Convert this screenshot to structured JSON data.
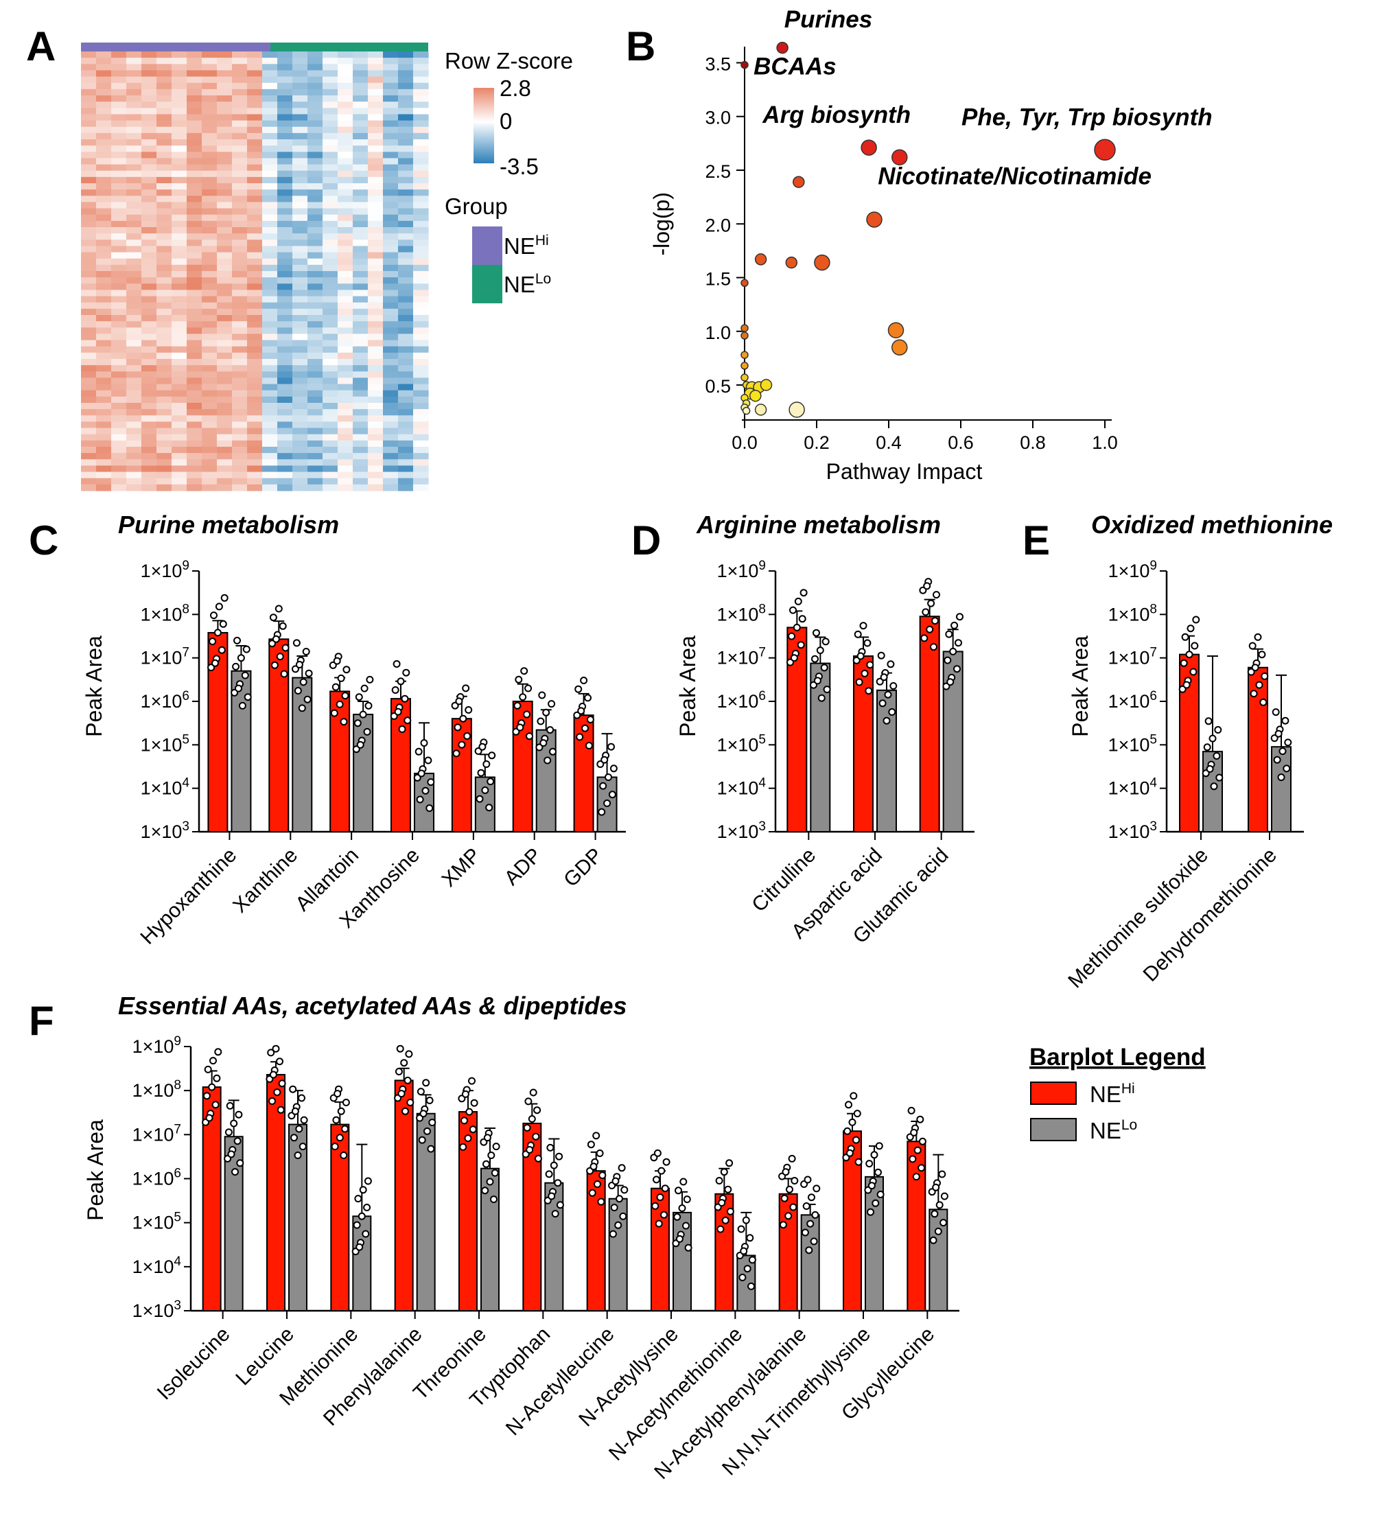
{
  "figure": {
    "panel_letters": [
      "A",
      "B",
      "C",
      "D",
      "E",
      "F"
    ]
  },
  "colors": {
    "ne_hi": "#ff1a00",
    "ne_lo": "#8c8c8c",
    "group_hi": "#7b72bd",
    "group_lo": "#1e9b74",
    "heat_high": "#e8866a",
    "heat_mid": "#ffffff",
    "heat_low": "#2c7fb8"
  },
  "panelA": {
    "colorbar_title": "Row Z-score",
    "colorbar_max": "2.8",
    "colorbar_mid": "0",
    "colorbar_min": "-3.5",
    "group_title": "Group",
    "group_hi": {
      "base": "NE",
      "sup": "Hi"
    },
    "group_lo": {
      "base": "NE",
      "sup": "Lo"
    }
  },
  "panelC": {
    "title": "Purine metabolism",
    "ylabel": "Peak Area"
  },
  "panelD": {
    "title": "Arginine metabolism",
    "ylabel": "Peak Area"
  },
  "panelE": {
    "title": "Oxidized methionine",
    "ylabel": "Peak Area"
  },
  "panelF": {
    "title": "Essential AAs, acetylated AAs & dipeptides",
    "ylabel": "Peak Area"
  },
  "legend": {
    "title": "Barplot Legend",
    "hi": {
      "base": "NE",
      "sup": "Hi"
    },
    "lo": {
      "base": "NE",
      "sup": "Lo"
    }
  },
  "chart_data": [
    {
      "id": "B",
      "type": "scatter",
      "xlabel": "Pathway Impact",
      "ylabel": "-log(p)",
      "xlim": [
        0,
        1.0
      ],
      "ylim": [
        0.2,
        3.65
      ],
      "xticks": [
        "0.0",
        "0.2",
        "0.4",
        "0.6",
        "0.8",
        "1.0"
      ],
      "yticks": [
        "0.5",
        "1.0",
        "1.5",
        "2.0",
        "2.5",
        "3.0",
        "3.5"
      ],
      "points": [
        {
          "x": 0.0,
          "y": 3.48,
          "size": 1,
          "color": "#a01010"
        },
        {
          "x": 0.105,
          "y": 3.64,
          "size": 2,
          "color": "#cc1a1a"
        },
        {
          "x": 0.345,
          "y": 2.71,
          "size": 3,
          "color": "#e2251b"
        },
        {
          "x": 0.43,
          "y": 2.62,
          "size": 3,
          "color": "#e2251b"
        },
        {
          "x": 1.0,
          "y": 2.69,
          "size": 5,
          "color": "#e62a1c"
        },
        {
          "x": 0.15,
          "y": 2.39,
          "size": 2,
          "color": "#e44a1c"
        },
        {
          "x": 0.36,
          "y": 2.04,
          "size": 3,
          "color": "#e8501e"
        },
        {
          "x": 0.045,
          "y": 1.67,
          "size": 2,
          "color": "#e6561e"
        },
        {
          "x": 0.13,
          "y": 1.64,
          "size": 2,
          "color": "#e6561e"
        },
        {
          "x": 0.215,
          "y": 1.64,
          "size": 3,
          "color": "#e8581e"
        },
        {
          "x": 0.0,
          "y": 1.45,
          "size": 1,
          "color": "#d9531c"
        },
        {
          "x": 0.42,
          "y": 1.01,
          "size": 3,
          "color": "#f27f1e"
        },
        {
          "x": 0.43,
          "y": 0.85,
          "size": 3,
          "color": "#f4861e"
        },
        {
          "x": 0.0,
          "y": 1.03,
          "size": 1,
          "color": "#e0741c"
        },
        {
          "x": 0.0,
          "y": 0.96,
          "size": 1,
          "color": "#e0741c"
        },
        {
          "x": 0.0,
          "y": 0.78,
          "size": 1,
          "color": "#ef9f1e"
        },
        {
          "x": 0.0,
          "y": 0.68,
          "size": 1,
          "color": "#efa51e"
        },
        {
          "x": 0.0,
          "y": 0.57,
          "size": 1,
          "color": "#f5c51e"
        },
        {
          "x": 0.005,
          "y": 0.5,
          "size": 1,
          "color": "#f7d21e"
        },
        {
          "x": 0.02,
          "y": 0.48,
          "size": 2,
          "color": "#f7dc1e"
        },
        {
          "x": 0.04,
          "y": 0.48,
          "size": 2,
          "color": "#f7dc1e"
        },
        {
          "x": 0.06,
          "y": 0.5,
          "size": 2,
          "color": "#f7dc1e"
        },
        {
          "x": 0.015,
          "y": 0.42,
          "size": 2,
          "color": "#f7dc1e"
        },
        {
          "x": 0.03,
          "y": 0.4,
          "size": 2,
          "color": "#f8e21e"
        },
        {
          "x": 0.0,
          "y": 0.38,
          "size": 1,
          "color": "#f8e21e"
        },
        {
          "x": 0.005,
          "y": 0.33,
          "size": 1,
          "color": "#f8e84a"
        },
        {
          "x": 0.0,
          "y": 0.29,
          "size": 1,
          "color": "#fbf0a0"
        },
        {
          "x": 0.005,
          "y": 0.26,
          "size": 1,
          "color": "#fdf7cc"
        },
        {
          "x": 0.045,
          "y": 0.27,
          "size": 2,
          "color": "#fbf2b0"
        },
        {
          "x": 0.145,
          "y": 0.27,
          "size": 3,
          "color": "#fbf3c0"
        }
      ],
      "annotations": [
        {
          "text": "Purines",
          "x": 0.11,
          "y": 3.83
        },
        {
          "text": "BCAAs",
          "x": 0.025,
          "y": 3.39
        },
        {
          "text": "Arg biosynth",
          "x": 0.05,
          "y": 2.94
        },
        {
          "text": "Phe, Tyr, Trp biosynth",
          "x": 0.95,
          "y": 2.92
        },
        {
          "text": "Nicotinate/Nicotinamide",
          "x": 0.37,
          "y": 2.37
        }
      ]
    },
    {
      "id": "C",
      "type": "bar",
      "title": "Purine metabolism",
      "ylabel": "Peak Area",
      "yscale": "log",
      "ylim": [
        1000,
        1000000000
      ],
      "categories": [
        "Hypoxanthine",
        "Xanthine",
        "Allantoin",
        "Xanthosine",
        "XMP",
        "ADP",
        "GDP"
      ],
      "series": [
        {
          "name": "NE Hi",
          "values": [
            38000000,
            27000000,
            1700000,
            1150000,
            400000,
            1000000,
            480000
          ],
          "err": [
            72000000,
            70000000,
            3500000,
            2900000,
            1300000,
            2500000,
            1500000
          ]
        },
        {
          "name": "NE Lo",
          "values": [
            5000000,
            3500000,
            500000,
            22000,
            18000,
            220000,
            18000
          ],
          "err": [
            19000000,
            11000000,
            1000000,
            320000,
            60000,
            640000,
            180000
          ]
        }
      ]
    },
    {
      "id": "D",
      "type": "bar",
      "title": "Arginine metabolism",
      "ylabel": "Peak Area",
      "yscale": "log",
      "ylim": [
        1000,
        1000000000
      ],
      "categories": [
        "Citrulline",
        "Aspartic acid",
        "Glutamic acid"
      ],
      "series": [
        {
          "name": "NE Hi",
          "values": [
            50000000,
            11000000,
            90000000
          ],
          "err": [
            120000000,
            30000000,
            220000000
          ]
        },
        {
          "name": "NE Lo",
          "values": [
            7500000,
            1800000,
            14000000
          ],
          "err": [
            30000000,
            4500000,
            45000000
          ]
        }
      ]
    },
    {
      "id": "E",
      "type": "bar",
      "title": "Oxidized methionine",
      "ylabel": "Peak Area",
      "yscale": "log",
      "ylim": [
        1000,
        1000000000
      ],
      "categories": [
        "Methionine sulfoxide",
        "Dehydromethionine"
      ],
      "series": [
        {
          "name": "NE Hi",
          "values": [
            12000000,
            6000000
          ],
          "err": [
            32000000,
            16000000
          ]
        },
        {
          "name": "NE Lo",
          "values": [
            70000,
            90000
          ],
          "err": [
            11000000,
            4000000
          ]
        }
      ]
    },
    {
      "id": "F",
      "type": "bar",
      "title": "Essential AAs, acetylated AAs & dipeptides",
      "ylabel": "Peak Area",
      "yscale": "log",
      "ylim": [
        1000,
        1000000000
      ],
      "categories": [
        "Isoleucine",
        "Leucine",
        "Methionine",
        "Phenylalanine",
        "Threonine",
        "Tryptophan",
        "N-Acetylleucine",
        "N-Acetyllysine",
        "N-Acetylmethionine",
        "N-Acetylphenylalanine",
        "N,N,N-Trimethyllysine",
        "Glycylleucine"
      ],
      "series": [
        {
          "name": "NE Hi",
          "values": [
            120000000,
            230000000,
            17000000,
            170000000,
            33000000,
            18000000,
            1500000,
            600000,
            450000,
            450000,
            12000000,
            7000000
          ],
          "err": [
            280000000,
            450000000,
            55000000,
            320000000,
            100000000,
            50000000,
            4000000,
            1500000,
            1700000,
            1000000,
            30000000,
            20000000
          ]
        },
        {
          "name": "NE Lo",
          "values": [
            9000000,
            17000000,
            140000,
            30000000,
            1700000,
            800000,
            350000,
            170000,
            18000,
            150000,
            1100000,
            200000
          ],
          "err": [
            60000000,
            100000000,
            6000000,
            80000000,
            14000000,
            8000000,
            700000,
            500000,
            170000,
            260000,
            5500000,
            3500000
          ]
        }
      ]
    }
  ]
}
